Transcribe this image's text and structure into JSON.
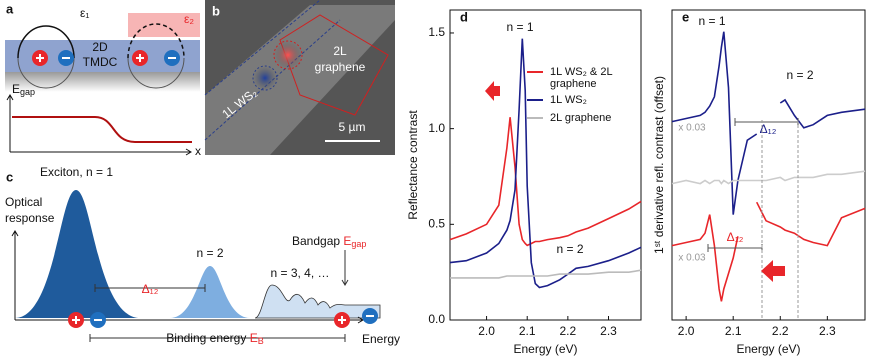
{
  "panels": {
    "a": {
      "label": "a",
      "eps1": "ε₁",
      "eps2": "ε₂",
      "material": [
        "2D",
        "TMDC"
      ],
      "egap": {
        "base": "E",
        "sub": "gap"
      },
      "x_axis": "x"
    },
    "b": {
      "label": "b",
      "graphene": [
        "2L",
        "graphene"
      ],
      "ws2": "1L WS₂",
      "scale": "5 µm"
    },
    "c": {
      "label": "c",
      "exciton": "Exciton, n = 1",
      "optical": [
        "Optical",
        "response"
      ],
      "n2": "n = 2",
      "n3": "n = 3, 4, …",
      "bandgap": {
        "text": "Bandgap",
        "base": "E",
        "sub": "gap"
      },
      "delta": "Δ₁₂",
      "binding": {
        "text": "Binding energy",
        "base": "E",
        "sub": "B"
      },
      "energy": "Energy"
    }
  },
  "chart_data": [
    {
      "type": "line",
      "panel_label": "d",
      "x_label": "Energy (eV)",
      "y_label": "Reflectance contrast",
      "annotations": [
        "n = 1",
        "n = 2"
      ],
      "x": [
        1.91,
        1.95,
        2.0,
        2.03,
        2.05,
        2.058,
        2.07,
        2.08,
        2.088,
        2.095,
        2.1,
        2.11,
        2.12,
        2.13,
        2.15,
        2.18,
        2.2,
        2.22,
        2.25,
        2.3,
        2.35,
        2.38
      ],
      "series": [
        {
          "name": "1L WS₂ & 2L graphene",
          "color": "#e8262a",
          "values": [
            0.42,
            0.45,
            0.5,
            0.6,
            0.9,
            1.06,
            0.8,
            0.5,
            0.42,
            0.4,
            0.39,
            0.4,
            0.41,
            0.41,
            0.42,
            0.43,
            0.44,
            0.46,
            0.48,
            0.53,
            0.58,
            0.62
          ]
        },
        {
          "name": "1L WS₂",
          "color": "#1b1f8a",
          "values": [
            0.3,
            0.31,
            0.35,
            0.4,
            0.47,
            0.52,
            0.68,
            1.1,
            1.47,
            1.2,
            0.7,
            0.3,
            0.19,
            0.17,
            0.18,
            0.21,
            0.24,
            0.27,
            0.28,
            0.31,
            0.35,
            0.38
          ]
        },
        {
          "name": "2L graphene",
          "color": "#bbbbbb",
          "values": [
            0.22,
            0.22,
            0.22,
            0.22,
            0.23,
            0.23,
            0.23,
            0.23,
            0.23,
            0.23,
            0.23,
            0.23,
            0.23,
            0.23,
            0.23,
            0.24,
            0.24,
            0.24,
            0.24,
            0.25,
            0.25,
            0.26
          ]
        }
      ],
      "xlim": [
        1.91,
        2.38
      ],
      "ylim": [
        0,
        1.62
      ],
      "xticks": [
        {
          "value": 2.0,
          "label": "2.0"
        },
        2.1,
        2.2,
        2.3
      ],
      "yticks": [
        {
          "value": 0,
          "label": "0.0"
        },
        0.5,
        {
          "value": 1,
          "label": "1.0"
        },
        1.5
      ]
    },
    {
      "type": "line",
      "panel_label": "e",
      "x_label": "Energy (eV)",
      "y_label": "1ˢᵗ derivative refl. contrast (offset)",
      "annotations": [
        "n = 1",
        "n = 2",
        "Δ₁₂",
        "Δ₁₂",
        "x 0.03",
        "x 0.03"
      ],
      "x": [
        1.97,
        2.0,
        2.03,
        2.04,
        2.05,
        2.06,
        2.07,
        2.075,
        2.08,
        2.09,
        2.1,
        2.11,
        2.13,
        2.15,
        2.17,
        2.2,
        2.21,
        2.23,
        2.25,
        2.27,
        2.3,
        2.33,
        2.38
      ],
      "series": [
        {
          "name": "1L WS₂",
          "color": "#1b1f8a",
          "values": [
            0.64,
            0.65,
            0.66,
            0.67,
            0.69,
            0.72,
            0.82,
            0.88,
            0.93,
            0.75,
            0.34,
            0.45,
            0.58,
            0.6,
            null,
            0.7,
            0.71,
            0.66,
            0.62,
            0.63,
            0.66,
            0.67,
            0.68
          ]
        },
        {
          "name": "2L graphene",
          "color": "#cccccc",
          "values": [
            0.44,
            0.45,
            0.44,
            0.45,
            0.44,
            0.45,
            0.45,
            0.44,
            0.45,
            0.44,
            0.45,
            0.45,
            0.45,
            0.45,
            0.45,
            0.46,
            0.45,
            0.46,
            0.46,
            0.46,
            0.47,
            0.47,
            0.48
          ]
        },
        {
          "name": "1L WS₂ & 2L graphene",
          "color": "#e8262a",
          "values": [
            0.24,
            0.25,
            0.26,
            0.28,
            0.34,
            0.24,
            0.1,
            0.06,
            0.1,
            0.15,
            0.2,
            0.27,
            null,
            0.38,
            0.32,
            0.3,
            0.29,
            0.28,
            0.26,
            0.25,
            0.24,
            0.33,
            0.36
          ]
        }
      ],
      "xlim": [
        1.97,
        2.38
      ],
      "ylim": [
        0,
        1
      ],
      "xticks": [
        {
          "value": 2.0,
          "label": "2.0"
        },
        2.1,
        2.2,
        2.3
      ]
    }
  ]
}
